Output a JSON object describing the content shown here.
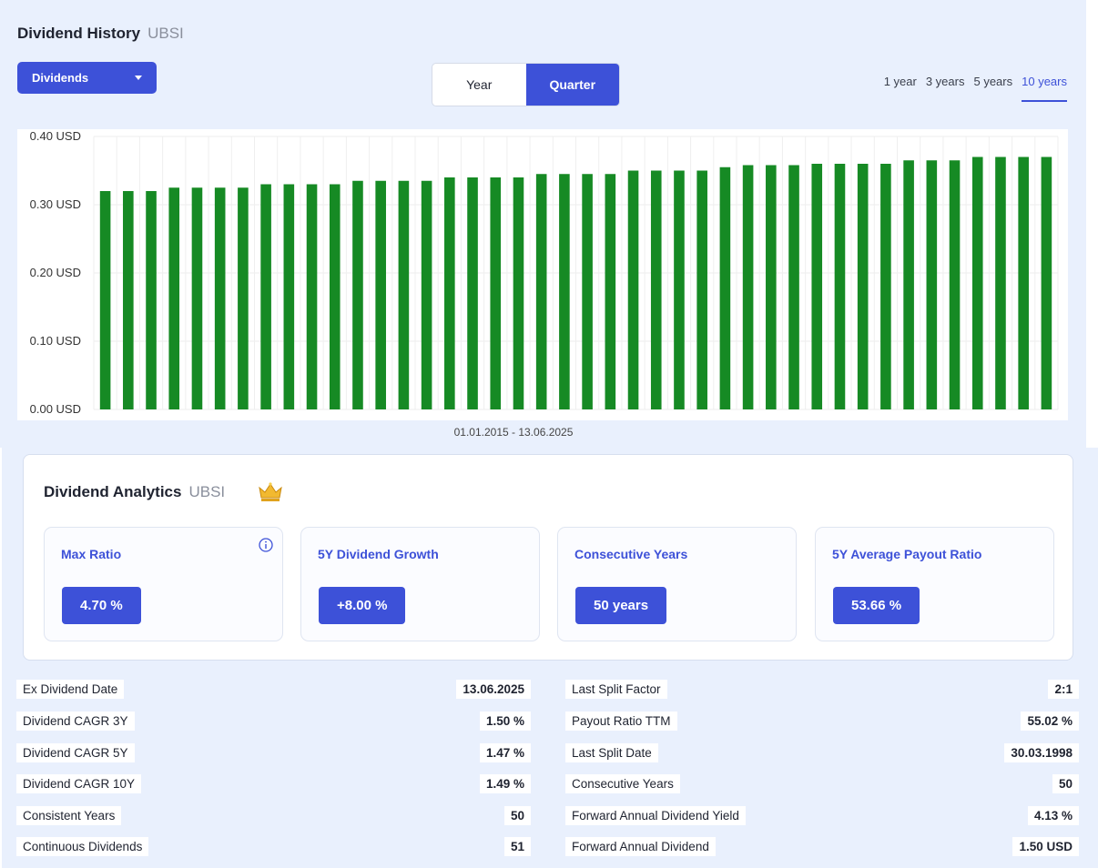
{
  "history": {
    "title": "Dividend History",
    "ticker": "UBSI",
    "dropdown_label": "Dividends",
    "toggle": [
      "Year",
      "Quarter"
    ],
    "ranges": [
      "1 year",
      "3 years",
      "5 years",
      "10 years"
    ],
    "date_range": "01.01.2015 - 13.06.2025"
  },
  "chart_data": {
    "type": "bar",
    "title": "",
    "xlabel": "01.01.2015 - 13.06.2025",
    "ylabel": "",
    "ylim": [
      0,
      0.4
    ],
    "y_ticks": [
      "0.00 USD",
      "0.10 USD",
      "0.20 USD",
      "0.30 USD",
      "0.40 USD"
    ],
    "grid": true,
    "bar_color": "#168a24",
    "series": [
      {
        "values": [
          0.32,
          0.32,
          0.32,
          0.325,
          0.325,
          0.325,
          0.325,
          0.33,
          0.33,
          0.33,
          0.33,
          0.335,
          0.335,
          0.335,
          0.335,
          0.34,
          0.34,
          0.34,
          0.34,
          0.345,
          0.345,
          0.345,
          0.345,
          0.35,
          0.35,
          0.35,
          0.35,
          0.355,
          0.358,
          0.358,
          0.358,
          0.36,
          0.36,
          0.36,
          0.36,
          0.365,
          0.365,
          0.365,
          0.37,
          0.37,
          0.37,
          0.37
        ]
      }
    ]
  },
  "analytics": {
    "title": "Dividend Analytics",
    "ticker": "UBSI",
    "kpis": [
      {
        "label": "Max Ratio",
        "value": "4.70 %"
      },
      {
        "label": "5Y Dividend Growth",
        "value": "+8.00 %"
      },
      {
        "label": "Consecutive Years",
        "value": "50 years"
      },
      {
        "label": "5Y Average Payout Ratio",
        "value": "53.66 %"
      }
    ]
  },
  "stats_left": [
    {
      "label": "Ex Dividend Date",
      "value": "13.06.2025"
    },
    {
      "label": "Dividend CAGR 3Y",
      "value": "1.50 %"
    },
    {
      "label": "Dividend CAGR 5Y",
      "value": "1.47 %"
    },
    {
      "label": "Dividend CAGR 10Y",
      "value": "1.49 %"
    },
    {
      "label": "Consistent Years",
      "value": "50"
    },
    {
      "label": "Continuous Dividends",
      "value": "51"
    }
  ],
  "stats_right": [
    {
      "label": "Last Split Factor",
      "value": "2:1"
    },
    {
      "label": "Payout Ratio TTM",
      "value": "55.02 %"
    },
    {
      "label": "Last Split Date",
      "value": "30.03.1998"
    },
    {
      "label": "Consecutive Years",
      "value": "50"
    },
    {
      "label": "Forward Annual Dividend Yield",
      "value": "4.13 %"
    },
    {
      "label": "Forward Annual Dividend",
      "value": "1.50 USD"
    }
  ]
}
